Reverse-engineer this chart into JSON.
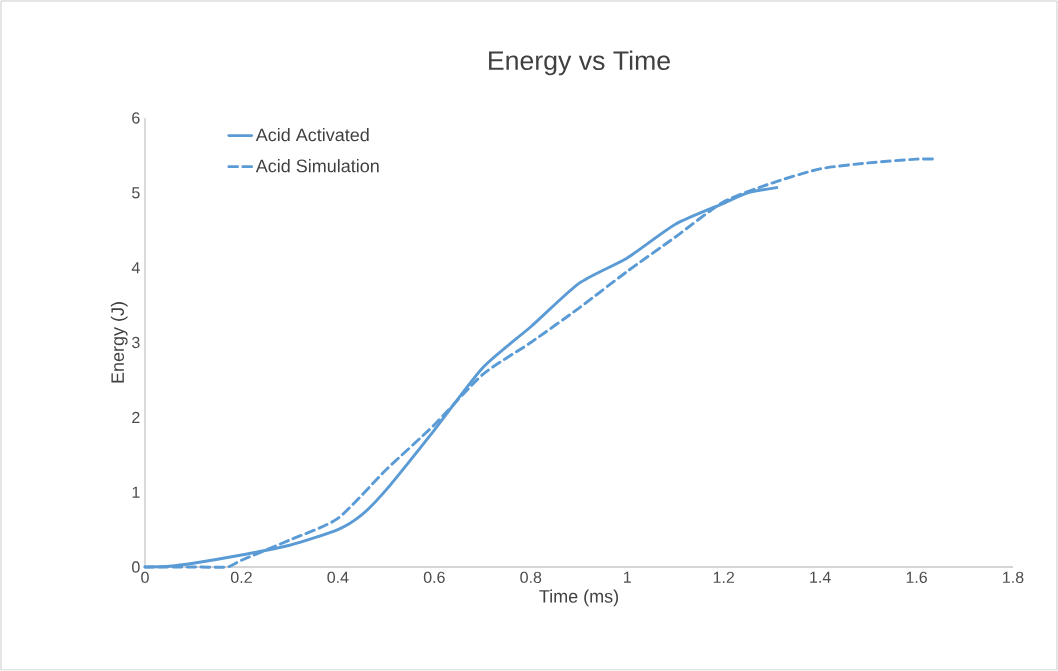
{
  "chart_data": {
    "type": "line",
    "title": "Energy vs Time",
    "xlabel": "Time (ms)",
    "ylabel": "Energy (J)",
    "xlim": [
      0,
      1.8
    ],
    "ylim": [
      0,
      6
    ],
    "xticks": [
      0,
      0.2,
      0.4,
      0.6,
      0.8,
      1,
      1.2,
      1.4,
      1.6,
      1.8
    ],
    "yticks": [
      0,
      1,
      2,
      3,
      4,
      5,
      6
    ],
    "grid": false,
    "legend": "top left",
    "marker": "none",
    "series": [
      {
        "name": "Acid Activated",
        "color": "#5b9bd5",
        "line_style": "solid",
        "x": [
          0,
          0.05,
          0.1,
          0.2,
          0.3,
          0.4,
          0.45,
          0.5,
          0.6,
          0.7,
          0.8,
          0.9,
          1.0,
          1.1,
          1.2,
          1.25,
          1.31
        ],
        "values": [
          0,
          0.01,
          0.05,
          0.16,
          0.29,
          0.5,
          0.7,
          1.03,
          1.83,
          2.66,
          3.21,
          3.79,
          4.13,
          4.58,
          4.86,
          5.0,
          5.07
        ]
      },
      {
        "name": "Acid Simulation",
        "color": "#5b9bd5",
        "line_style": "dashed",
        "x": [
          0,
          0.1,
          0.17,
          0.2,
          0.3,
          0.4,
          0.5,
          0.6,
          0.7,
          0.8,
          0.9,
          1.0,
          1.1,
          1.2,
          1.3,
          1.4,
          1.5,
          1.6,
          1.64
        ],
        "values": [
          0,
          0,
          0,
          0.09,
          0.36,
          0.65,
          1.3,
          1.9,
          2.57,
          3.0,
          3.46,
          3.95,
          4.41,
          4.88,
          5.13,
          5.32,
          5.4,
          5.45,
          5.45
        ]
      }
    ]
  }
}
